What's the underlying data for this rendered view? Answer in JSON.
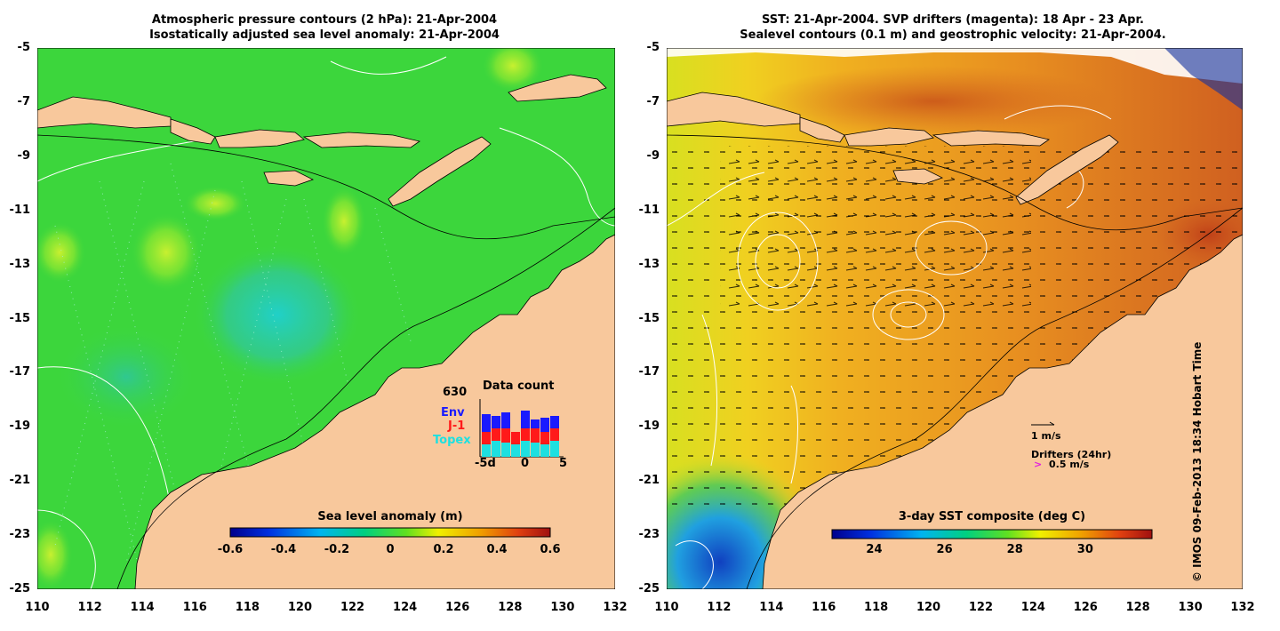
{
  "left_panel": {
    "title_line1": "Atmospheric pressure contours (2 hPa): 21-Apr-2004",
    "title_line2": "Isostatically adjusted sea level anomaly: 21-Apr-2004",
    "colorbar": {
      "title": "Sea level anomaly (m)",
      "ticks": [
        "-0.6",
        "-0.4",
        "-0.2",
        "0",
        "0.2",
        "0.4",
        "0.6"
      ],
      "range": [
        -0.6,
        0.6
      ]
    },
    "data_count": {
      "total": "630",
      "title": "Data count",
      "legend": [
        {
          "label": "Env",
          "color": "#1a1aff"
        },
        {
          "label": "J-1",
          "color": "#ff1a1a"
        },
        {
          "label": "Topex",
          "color": "#1ee0e0"
        }
      ],
      "x_ticks": [
        "-5d",
        "0",
        "5"
      ]
    }
  },
  "right_panel": {
    "title_line1": "SST: 21-Apr-2004. SVP drifters (magenta): 18 Apr - 23 Apr.",
    "title_line2": "Sealevel contours (0.1 m) and geostrophic velocity: 21-Apr-2004.",
    "colorbar": {
      "title": "3-day SST composite (deg C)",
      "ticks": [
        "24",
        "26",
        "28",
        "30"
      ],
      "range": [
        22.8,
        31.9
      ]
    },
    "vector_scale_label": "1 m/s",
    "drifters_label": "Drifters (24hr)",
    "drifter_speed_label": "> 0.5 m/s"
  },
  "axes": {
    "lat_ticks": [
      "-5",
      "-7",
      "-9",
      "-11",
      "-13",
      "-15",
      "-17",
      "-19",
      "-21",
      "-23",
      "-25"
    ],
    "lon_ticks": [
      "110",
      "112",
      "114",
      "116",
      "118",
      "120",
      "122",
      "124",
      "126",
      "128",
      "130",
      "132"
    ],
    "lat_range": [
      -25,
      -5
    ],
    "lon_range": [
      110,
      132
    ]
  },
  "credit": "© IMOS 09-Feb-2013 18:34 Hobart Time",
  "colors": {
    "land": "#f8c89c",
    "sla_ocean": "#3cd63c",
    "sst_ocean": "#f0a020"
  }
}
